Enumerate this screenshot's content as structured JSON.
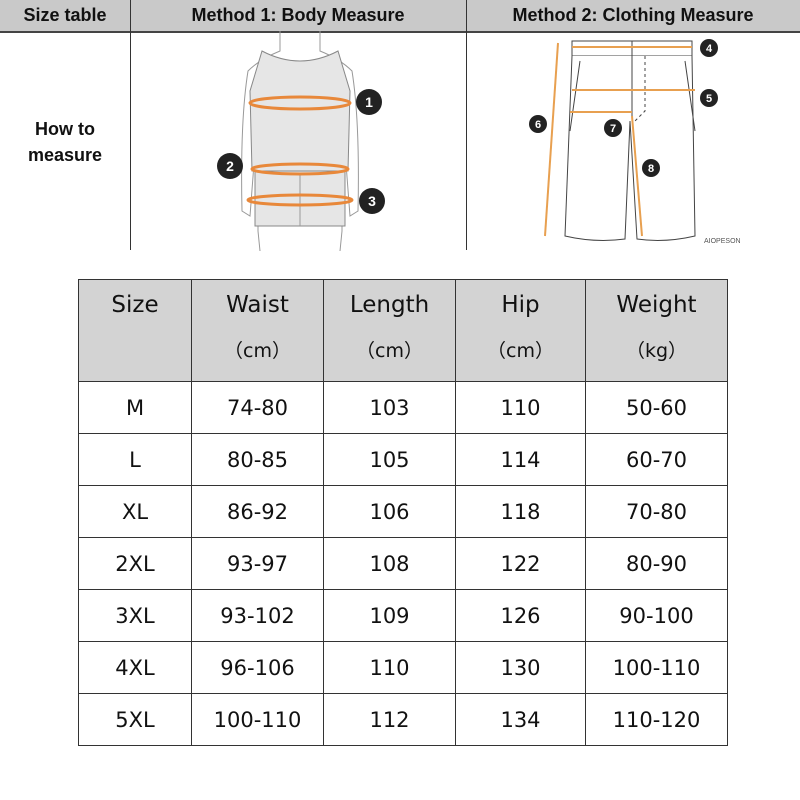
{
  "header": {
    "col1": "Size table",
    "col2": "Method 1: Body  Measure",
    "col3": "Method 2: Clothing Measure"
  },
  "how_to_measure": [
    "How to",
    "measure"
  ],
  "body_markers": [
    "1",
    "2",
    "3"
  ],
  "clothing_markers": [
    "4",
    "5",
    "6",
    "7",
    "8"
  ],
  "watermark": "AIOPESON",
  "colors": {
    "header_bg": "#c9c9c9",
    "table_header_bg": "#d3d3d3",
    "measure_line": "#e8883a"
  },
  "table": {
    "columns": [
      {
        "title": "Size",
        "unit": ""
      },
      {
        "title": "Waist",
        "unit": "（cm）"
      },
      {
        "title": "Length",
        "unit": "（cm）"
      },
      {
        "title": "Hip",
        "unit": "（cm）"
      },
      {
        "title": "Weight",
        "unit": "（kg）"
      }
    ],
    "rows": [
      [
        "M",
        "74-80",
        "103",
        "110",
        "50-60"
      ],
      [
        "L",
        "80-85",
        "105",
        "114",
        "60-70"
      ],
      [
        "XL",
        "86-92",
        "106",
        "118",
        "70-80"
      ],
      [
        "2XL",
        "93-97",
        "108",
        "122",
        "80-90"
      ],
      [
        "3XL",
        "93-102",
        "109",
        "126",
        "90-100"
      ],
      [
        "4XL",
        "96-106",
        "110",
        "130",
        "100-110"
      ],
      [
        "5XL",
        "100-110",
        "112",
        "134",
        "110-120"
      ]
    ]
  }
}
